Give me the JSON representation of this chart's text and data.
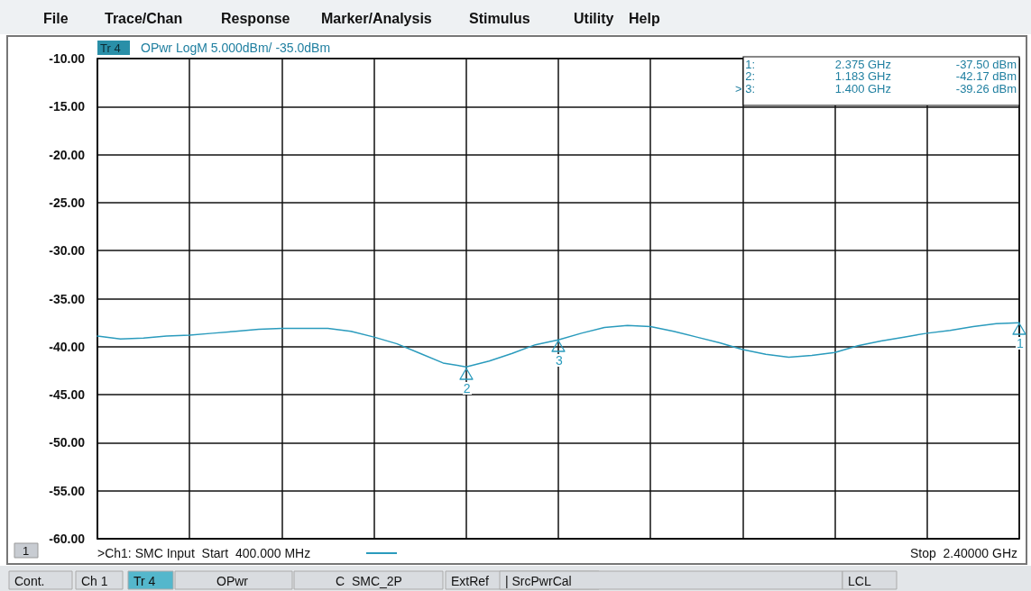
{
  "chart_data": {
    "type": "line",
    "title": "OPwr LogM 5.000dBm/ -35.0dBm",
    "categories": [
      null,
      null,
      null,
      null,
      null,
      null,
      null,
      null,
      null,
      null,
      null,
      null,
      null,
      null,
      null,
      null,
      null,
      null,
      null,
      null,
      null,
      null,
      null,
      null,
      null,
      null,
      null,
      null,
      null,
      null,
      null,
      null,
      null,
      null,
      null,
      null,
      null,
      null,
      null,
      null,
      null
    ],
    "series": [
      {
        "color": "#2a9bbd",
        "values": [
          -38.9,
          -39.2,
          -39.1,
          -38.9,
          -38.8,
          -38.6,
          -38.4,
          -38.2,
          -38.1,
          -38.1,
          -38.1,
          -38.4,
          -39.0,
          -39.7,
          -40.7,
          -41.7,
          -42.1,
          -41.5,
          -40.7,
          -39.8,
          -39.3,
          -38.6,
          -38.0,
          -37.8,
          -37.9,
          -38.4,
          -39.0,
          -39.6,
          -40.3,
          -40.8,
          -41.1,
          -40.9,
          -40.6,
          -39.9,
          -39.4,
          -39.0,
          -38.6,
          -38.3,
          -37.9,
          -37.6,
          -37.5
        ]
      }
    ],
    "ylim": [
      -60,
      -10
    ],
    "yticks": [
      {
        "value": -60,
        "label": "-60.00"
      },
      {
        "value": -55,
        "label": "-55.00"
      },
      {
        "value": -50,
        "label": "-50.00"
      },
      {
        "value": -45,
        "label": "-45.00"
      },
      {
        "value": -40,
        "label": "-40.00"
      },
      {
        "value": -35,
        "label": "-35.00"
      },
      {
        "value": -30,
        "label": "-30.00"
      },
      {
        "value": -25,
        "label": "-25.00"
      },
      {
        "value": -20,
        "label": "-20.00"
      },
      {
        "value": -15,
        "label": "-15.00"
      },
      {
        "value": -10,
        "label": "-10.00"
      }
    ],
    "tick_labels": "y",
    "grid": true,
    "marker": "none",
    "line_style": "solid",
    "annotations": [
      "File",
      "Trace/Chan",
      "Response",
      "Marker/Analysis",
      "Stimulus",
      "Utility",
      "Help",
      "Tr 4",
      "1:",
      "2.375 GHz",
      "-37.50 dBm",
      "2:",
      "1.183 GHz",
      "-42.17 dBm",
      "> 3:",
      "1.400 GHz",
      "-39.26 dBm",
      "1",
      ">Ch1: SMC Input  Start  400.000 MHz",
      "Stop  2.40000 GHz",
      "Cont.",
      "Ch 1",
      "Tr 4",
      "OPwr",
      "C  SMC_2P",
      "ExtRef",
      "| SrcPwrCal",
      "LCL",
      {
        "text": "1",
        "y": -37.5
      },
      {
        "text": "2",
        "y": -42.17
      },
      {
        "text": "3",
        "y": -39.26
      }
    ]
  }
}
